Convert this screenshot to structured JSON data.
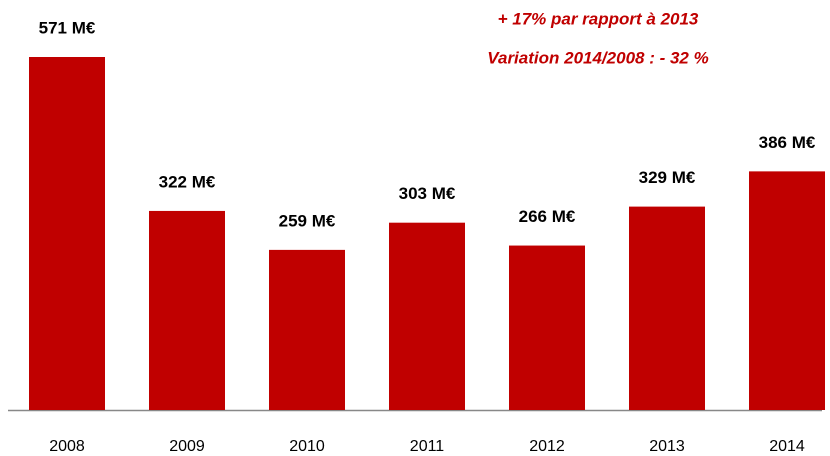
{
  "chart_data": {
    "type": "bar",
    "annotations": [
      "+ 17% par rapport à 2013",
      "Variation 2014/2008 : - 32 %"
    ],
    "categories": [
      "2008",
      "2009",
      "2010",
      "2011",
      "2012",
      "2013",
      "2014"
    ],
    "values": [
      571,
      322,
      259,
      303,
      266,
      329,
      386
    ],
    "value_labels": [
      "571 M€",
      "322 M€",
      "259 M€",
      "303 M€",
      "266 M€",
      "329 M€",
      "386 M€"
    ],
    "color": "#c00000",
    "ylim": [
      0,
      571
    ]
  }
}
